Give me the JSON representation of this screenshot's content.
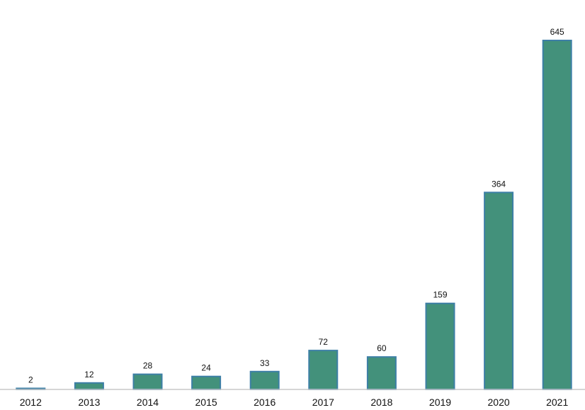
{
  "chart_data": {
    "type": "bar",
    "categories": [
      "2012",
      "2013",
      "2014",
      "2015",
      "2016",
      "2017",
      "2018",
      "2019",
      "2020",
      "2021"
    ],
    "values": [
      2,
      12,
      28,
      24,
      33,
      72,
      60,
      159,
      364,
      645
    ],
    "title": "",
    "xlabel": "",
    "ylabel": "",
    "ylim": [
      0,
      645
    ],
    "grid": false,
    "legend": "none",
    "data_labels": true,
    "colors": {
      "bar_fill": "#43917b",
      "bar_stroke": "#3d7fa6",
      "axis": "#c8c8c8"
    }
  }
}
